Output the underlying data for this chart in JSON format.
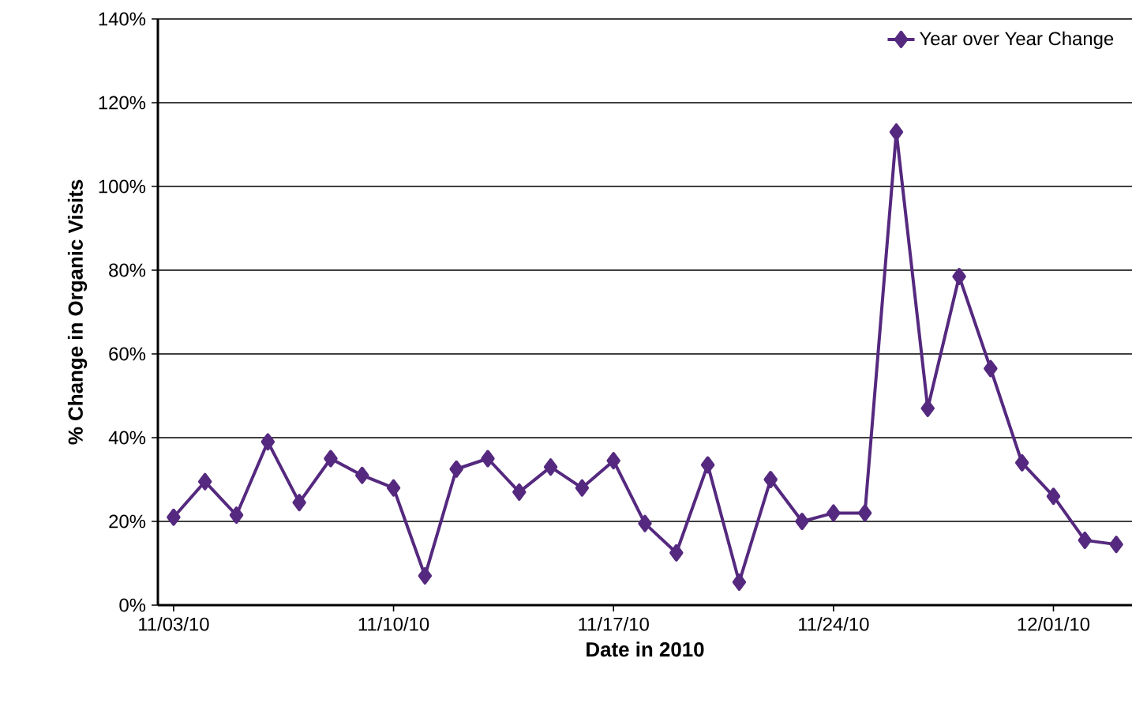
{
  "chart_data": {
    "type": "line",
    "xlabel": "Date in 2010",
    "ylabel": "% Change in Organic Visits",
    "x": [
      "2010-11-03",
      "2010-11-04",
      "2010-11-05",
      "2010-11-06",
      "2010-11-07",
      "2010-11-08",
      "2010-11-09",
      "2010-11-10",
      "2010-11-11",
      "2010-11-12",
      "2010-11-13",
      "2010-11-14",
      "2010-11-15",
      "2010-11-16",
      "2010-11-17",
      "2010-11-18",
      "2010-11-19",
      "2010-11-20",
      "2010-11-21",
      "2010-11-22",
      "2010-11-23",
      "2010-11-24",
      "2010-11-25",
      "2010-11-26",
      "2010-11-27",
      "2010-11-28",
      "2010-11-29",
      "2010-11-30",
      "2010-12-01",
      "2010-12-02",
      "2010-12-03"
    ],
    "series": [
      {
        "name": "Year over Year Change",
        "color": "#55297f",
        "values": [
          21,
          29.5,
          21.5,
          39,
          24.5,
          35,
          31,
          28,
          7,
          32.5,
          35,
          27,
          33,
          28,
          34.5,
          19.5,
          12.5,
          33.5,
          5.5,
          30,
          20,
          22,
          22,
          113,
          47,
          78.5,
          56.5,
          34,
          26,
          15.5,
          14.5
        ]
      }
    ],
    "xlim": [
      "2010-11-02T12:00",
      "2010-12-03T12:00"
    ],
    "xticks": [
      {
        "value": "2010-11-03",
        "label": "11/03/10"
      },
      {
        "value": "2010-11-10",
        "label": "11/10/10"
      },
      {
        "value": "2010-11-17",
        "label": "11/17/10"
      },
      {
        "value": "2010-11-24",
        "label": "11/24/10"
      },
      {
        "value": "2010-12-01",
        "label": "12/01/10"
      }
    ],
    "ylim": [
      0,
      140
    ],
    "yticks": [
      {
        "value": 0,
        "label": "0%"
      },
      {
        "value": 20,
        "label": "20%"
      },
      {
        "value": 40,
        "label": "40%"
      },
      {
        "value": 60,
        "label": "60%"
      },
      {
        "value": 80,
        "label": "80%"
      },
      {
        "value": 100,
        "label": "100%"
      },
      {
        "value": 120,
        "label": "120%"
      },
      {
        "value": 140,
        "label": "140%"
      }
    ],
    "grid": "y",
    "legend": "top right",
    "marker": "diamond",
    "line_style": "solid"
  }
}
